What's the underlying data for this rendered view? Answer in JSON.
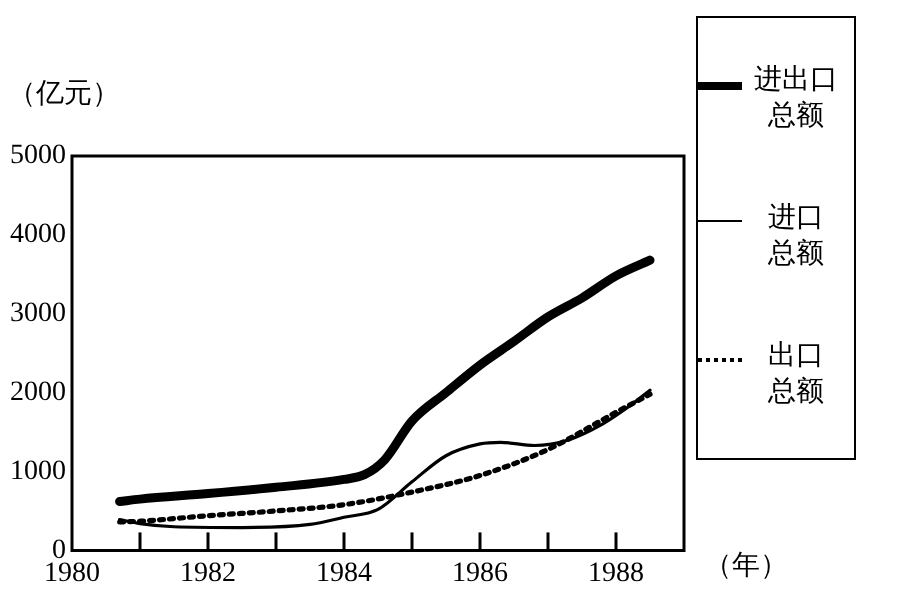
{
  "chart_data": {
    "type": "line",
    "ylabel": "（亿元）",
    "xlabel": "（年）",
    "xlim": [
      1980,
      1989
    ],
    "xticks": [
      1980,
      {
        "value": 1981,
        "label": null
      },
      1982,
      {
        "value": 1983,
        "label": null
      },
      1984,
      {
        "value": 1985,
        "label": null
      },
      1986,
      {
        "value": 1987,
        "label": null
      },
      1988
    ],
    "ylim": [
      0,
      5000
    ],
    "yticks": [
      0,
      1000,
      2000,
      3000,
      4000,
      5000
    ],
    "grid": false,
    "legend": "right",
    "marker": "none",
    "series": [
      {
        "name": "进出口总额",
        "color": "#000000",
        "line_style": "solid",
        "x": [
          1980.7,
          1981,
          1982,
          1983,
          1984,
          1984.3,
          1984.6,
          1985,
          1985.5,
          1986,
          1986.5,
          1987,
          1987.5,
          1988,
          1988.5
        ],
        "values": [
          620,
          650,
          720,
          800,
          900,
          960,
          1150,
          1640,
          2000,
          2350,
          2650,
          2960,
          3200,
          3480,
          3680
        ]
      },
      {
        "name": "进口总额",
        "color": "#000000",
        "line_style": "solid",
        "x": [
          1980.7,
          1981,
          1981.5,
          1982.5,
          1983.5,
          1984,
          1984.5,
          1985,
          1985.5,
          1986,
          1986.3,
          1986.8,
          1987.3,
          1987.8,
          1988.2,
          1988.5
        ],
        "values": [
          390,
          340,
          300,
          290,
          330,
          420,
          520,
          870,
          1200,
          1350,
          1370,
          1330,
          1400,
          1600,
          1830,
          2030
        ]
      },
      {
        "name": "出口总额",
        "color": "#000000",
        "line_style": "dotted",
        "x": [
          1980.7,
          1981,
          1982,
          1983,
          1984,
          1985,
          1986,
          1987,
          1988,
          1988.5
        ],
        "values": [
          360,
          370,
          440,
          500,
          580,
          740,
          950,
          1280,
          1750,
          1980
        ]
      }
    ]
  }
}
